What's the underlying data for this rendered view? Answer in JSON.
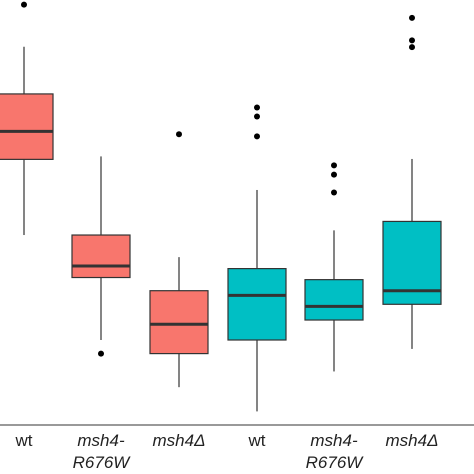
{
  "chart_data": {
    "type": "boxplot",
    "title": "",
    "xlabel": "",
    "ylabel": "",
    "ylim": [
      0,
      10
    ],
    "grid": false,
    "legend": "none",
    "categories": [
      {
        "line1": "wt",
        "line2": "",
        "italic": false
      },
      {
        "line1": "msh4-",
        "line2": "R676W",
        "italic": true
      },
      {
        "line1": "msh4Δ",
        "line2": "",
        "italic": true
      },
      {
        "line1": "wt",
        "line2": "",
        "italic": false
      },
      {
        "line1": "msh4-",
        "line2": "R676W",
        "italic": true
      },
      {
        "line1": "msh4Δ",
        "line2": "",
        "italic": true
      }
    ],
    "boxes": [
      {
        "whisker_low": 4.47,
        "q1": 6.25,
        "median": 6.91,
        "q3": 7.79,
        "whisker_high": 8.9,
        "outliers": [
          9.89
        ],
        "color": "#f8766d"
      },
      {
        "whisker_low": 2.0,
        "q1": 3.47,
        "median": 3.74,
        "q3": 4.47,
        "whisker_high": 6.32,
        "outliers": [
          1.68
        ],
        "color": "#f8766d"
      },
      {
        "whisker_low": 0.89,
        "q1": 1.68,
        "median": 2.37,
        "q3": 3.16,
        "whisker_high": 3.95,
        "outliers": [
          6.84
        ],
        "color": "#f8766d"
      },
      {
        "whisker_low": 0.32,
        "q1": 2.0,
        "median": 3.05,
        "q3": 3.68,
        "whisker_high": 5.53,
        "outliers": [
          7.26,
          7.47,
          6.79
        ],
        "color": "#00bfc4"
      },
      {
        "whisker_low": 1.26,
        "q1": 2.47,
        "median": 2.79,
        "q3": 3.42,
        "whisker_high": 4.58,
        "outliers": [
          5.47,
          5.89,
          6.11
        ],
        "color": "#00bfc4"
      },
      {
        "whisker_low": 1.79,
        "q1": 2.84,
        "median": 3.16,
        "q3": 4.79,
        "whisker_high": 6.26,
        "outliers": [
          8.89,
          9.05,
          9.58
        ],
        "color": "#00bfc4"
      }
    ]
  }
}
